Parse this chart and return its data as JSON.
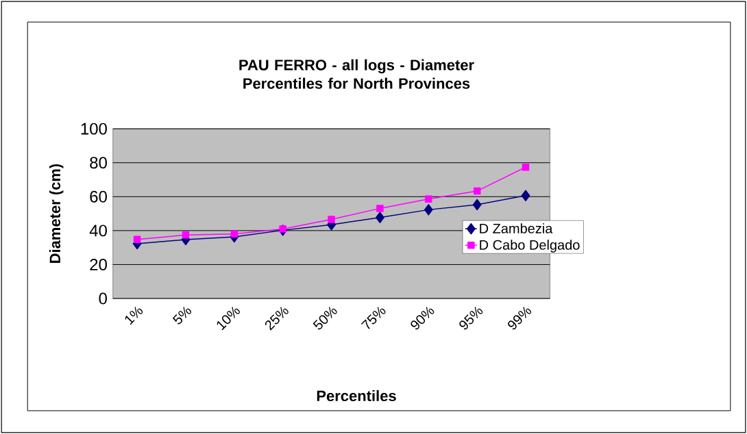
{
  "chart_data": {
    "type": "line",
    "title": "PAU FERRO - all logs - Diameter Percentiles for North Provinces",
    "xlabel": "Percentiles",
    "ylabel": "Diameter (cm)",
    "categories": [
      "1%",
      "5%",
      "10%",
      "25%",
      "50%",
      "75%",
      "90%",
      "95%",
      "99%"
    ],
    "series": [
      {
        "name": "D Zambezia",
        "color": "#000080",
        "marker": "diamond",
        "values": [
          32.3,
          34.7,
          36.3,
          40.2,
          43.5,
          47.7,
          52.3,
          55.3,
          60.6
        ]
      },
      {
        "name": "D Cabo Delgado",
        "color": "#ff00ff",
        "marker": "square",
        "values": [
          34.8,
          37.4,
          38,
          41,
          46.6,
          53.1,
          58.6,
          63.3,
          77.4
        ]
      }
    ],
    "ylim": [
      0,
      100
    ],
    "yticks": [
      0,
      20,
      40,
      60,
      80,
      100
    ],
    "grid": "y",
    "legend": "right",
    "line_style": "solid"
  }
}
